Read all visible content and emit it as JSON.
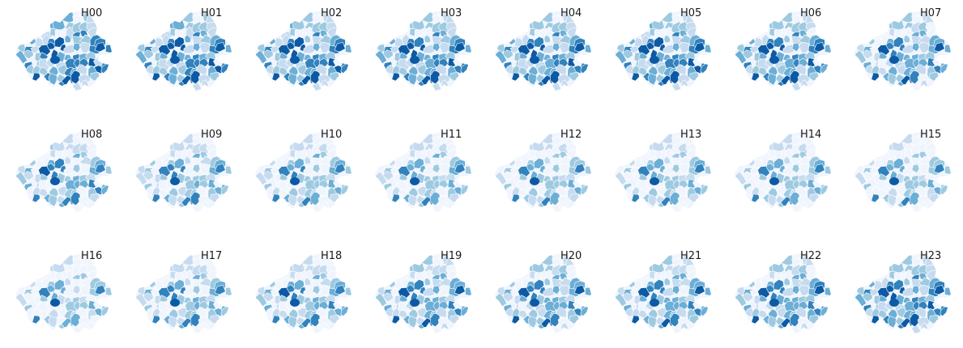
{
  "figure": {
    "type": "small-multiples-choropleth",
    "colormap": [
      "#f0f5fd",
      "#c6dbef",
      "#9ecae1",
      "#6baed6",
      "#3182bd",
      "#0c5aa5"
    ],
    "background": "#ffffff",
    "panels": [
      {
        "label": "H00",
        "intensity": 0.62
      },
      {
        "label": "H01",
        "intensity": 0.6
      },
      {
        "label": "H02",
        "intensity": 0.58
      },
      {
        "label": "H03",
        "intensity": 0.57
      },
      {
        "label": "H04",
        "intensity": 0.57
      },
      {
        "label": "H05",
        "intensity": 0.58
      },
      {
        "label": "H06",
        "intensity": 0.56
      },
      {
        "label": "H07",
        "intensity": 0.46
      },
      {
        "label": "H08",
        "intensity": 0.38
      },
      {
        "label": "H09",
        "intensity": 0.33
      },
      {
        "label": "H10",
        "intensity": 0.31
      },
      {
        "label": "H11",
        "intensity": 0.29
      },
      {
        "label": "H12",
        "intensity": 0.26
      },
      {
        "label": "H13",
        "intensity": 0.27
      },
      {
        "label": "H14",
        "intensity": 0.27
      },
      {
        "label": "H15",
        "intensity": 0.24
      },
      {
        "label": "H16",
        "intensity": 0.22
      },
      {
        "label": "H17",
        "intensity": 0.34
      },
      {
        "label": "H18",
        "intensity": 0.37
      },
      {
        "label": "H19",
        "intensity": 0.43
      },
      {
        "label": "H20",
        "intensity": 0.45
      },
      {
        "label": "H21",
        "intensity": 0.44
      },
      {
        "label": "H22",
        "intensity": 0.47
      },
      {
        "label": "H23",
        "intensity": 0.57
      }
    ]
  }
}
